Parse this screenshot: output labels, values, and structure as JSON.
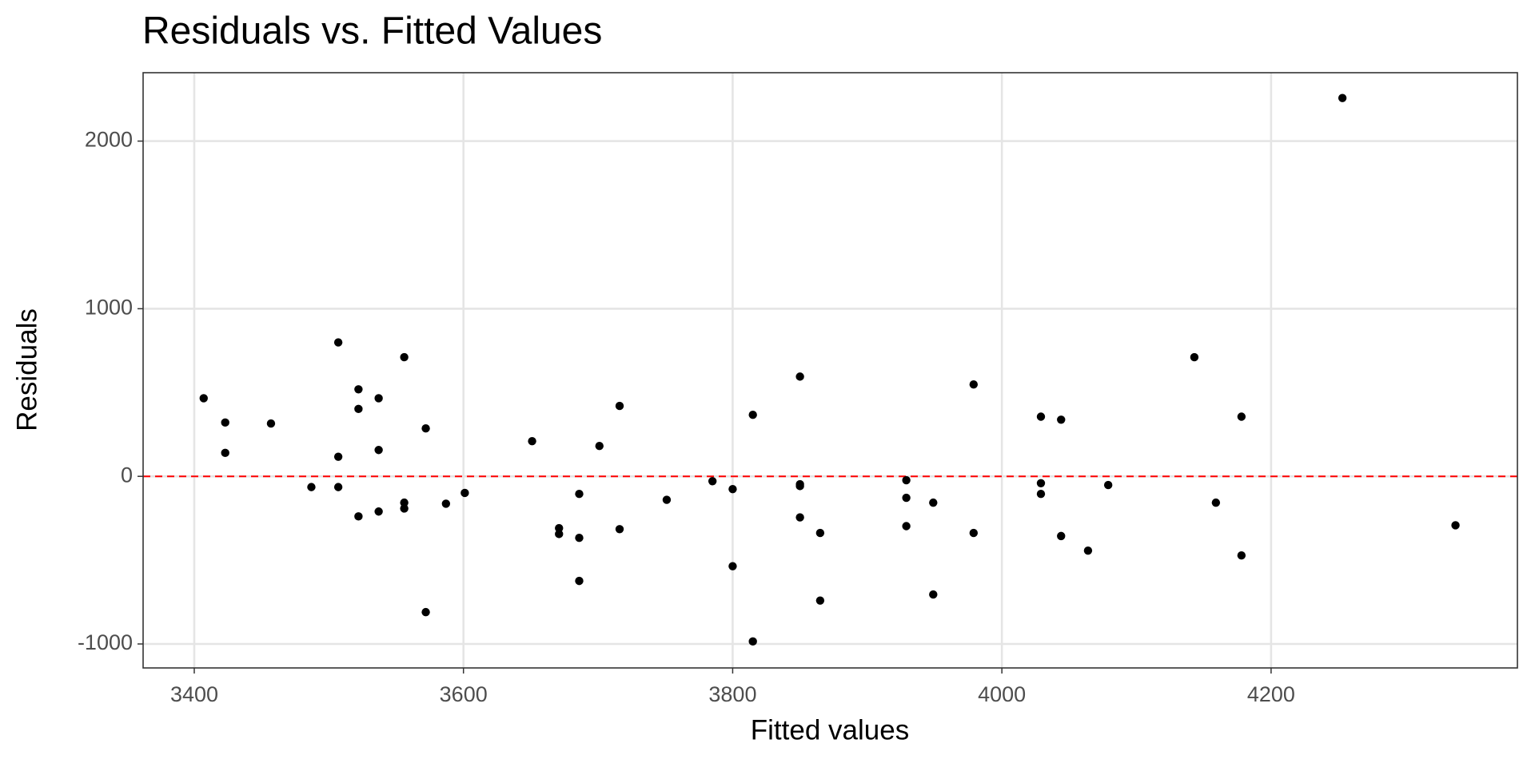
{
  "chart_data": {
    "type": "scatter",
    "title": "Residuals vs. Fitted Values",
    "x_label": "Fitted values",
    "y_label": "Residuals",
    "color": "#000000",
    "grid": true,
    "reference_line": {
      "y": 0,
      "color": "#ff0000",
      "dashed": true
    },
    "xlim": [
      3362,
      4383
    ],
    "ylim": [
      -1143,
      2408
    ],
    "xticks": [
      3400,
      3600,
      3800,
      4000,
      4200
    ],
    "yticks": [
      -1000,
      0,
      1000,
      2000
    ],
    "x": [
      3407,
      3423,
      3423,
      3457,
      3487,
      3507,
      3507,
      3507,
      3522,
      3522,
      3522,
      3537,
      3537,
      3537,
      3556,
      3556,
      3556,
      3572,
      3572,
      3587,
      3601,
      3651,
      3671,
      3671,
      3686,
      3686,
      3686,
      3701,
      3716,
      3716,
      3751,
      3785,
      3800,
      3800,
      3815,
      3815,
      3850,
      3850,
      3850,
      3850,
      3865,
      3865,
      3929,
      3929,
      3929,
      3949,
      3949,
      3979,
      3979,
      4029,
      4029,
      4029,
      4044,
      4044,
      4064,
      4079,
      4143,
      4159,
      4178,
      4178,
      4253,
      4337
    ],
    "values": [
      466,
      321,
      140,
      315,
      -64,
      799,
      117,
      -64,
      519,
      402,
      -239,
      466,
      157,
      -210,
      711,
      -157,
      -192,
      286,
      -810,
      -163,
      -99,
      210,
      -309,
      -344,
      -105,
      -367,
      -624,
      181,
      420,
      -315,
      -140,
      -29,
      -76,
      -536,
      367,
      -985,
      595,
      -47,
      -58,
      -245,
      -338,
      -741,
      -23,
      -128,
      -297,
      -157,
      -705,
      548,
      -338,
      356,
      -41,
      -105,
      338,
      -356,
      -443,
      -52,
      711,
      -157,
      356,
      -472,
      2257,
      -292
    ]
  }
}
